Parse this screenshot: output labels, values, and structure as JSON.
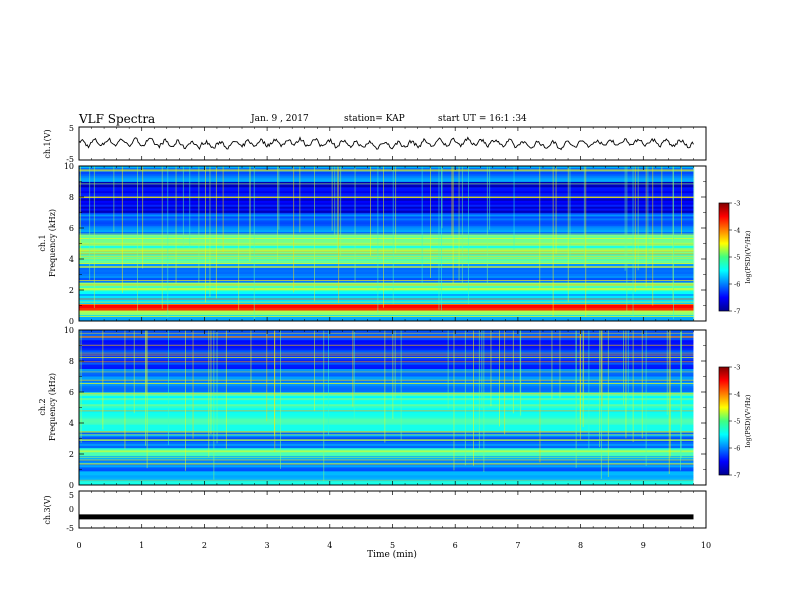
{
  "header": {
    "title": "VLF Spectra",
    "date": "Jan. 9 , 2017",
    "station": "station= KAP",
    "start_ut": "start UT = 16:1 :34"
  },
  "chart_data": [
    {
      "type": "line",
      "panel": "ch1-waveform",
      "ylabel": "ch.1(V)",
      "ylim": [
        -5,
        5
      ],
      "yticks": [
        "5",
        "-5"
      ],
      "xlim": [
        0,
        10
      ],
      "series": [
        {
          "values_note": "noisy waveform oscillating roughly between -1.5 and 1.5 V over 0–9.8 min"
        }
      ]
    },
    {
      "type": "heatmap",
      "panel": "ch1-spectrogram",
      "ylabel": "ch.1\nFrequency (kHz)",
      "ylabel_lines": [
        "ch.1",
        "Frequency (kHz)"
      ],
      "ylim": [
        0,
        10
      ],
      "yticks": [
        "0",
        "2",
        "4",
        "6",
        "8",
        "10"
      ],
      "xlim": [
        0,
        9.8
      ],
      "colorbar": {
        "label": "log(PSD)(V²/Hz)",
        "min": -7,
        "max": -3,
        "ticks": [
          "-3",
          "-4",
          "-5",
          "-6",
          "-7"
        ]
      },
      "bands_khz": [
        {
          "f0": 0.0,
          "f1": 0.4,
          "level": -5.8
        },
        {
          "f0": 0.4,
          "f1": 0.7,
          "level": -5.0
        },
        {
          "f0": 0.7,
          "f1": 1.1,
          "level": -3.6
        },
        {
          "f0": 1.1,
          "f1": 2.0,
          "level": -5.6
        },
        {
          "f0": 2.0,
          "f1": 2.5,
          "level": -5.0
        },
        {
          "f0": 2.5,
          "f1": 3.7,
          "level": -6.1
        },
        {
          "f0": 3.7,
          "f1": 5.6,
          "level": -5.2
        },
        {
          "f0": 5.6,
          "f1": 7.0,
          "level": -6.0
        },
        {
          "f0": 7.0,
          "f1": 9.0,
          "level": -6.6
        },
        {
          "f0": 9.0,
          "f1": 10.0,
          "level": -6.0
        }
      ]
    },
    {
      "type": "heatmap",
      "panel": "ch2-spectrogram",
      "ylabel": "ch.2\nFrequency (kHz)",
      "ylabel_lines": [
        "ch.2",
        "Frequency (kHz)"
      ],
      "ylim": [
        0,
        10
      ],
      "yticks": [
        "0",
        "2",
        "4",
        "6",
        "8",
        "10"
      ],
      "xlim": [
        0,
        9.8
      ],
      "colorbar": {
        "label": "log(PSD)(V²/Hz)",
        "min": -7,
        "max": -3,
        "ticks": [
          "-3",
          "-4",
          "-5",
          "-6",
          "-7"
        ]
      },
      "bands_khz": [
        {
          "f0": 0.0,
          "f1": 0.5,
          "level": -5.6
        },
        {
          "f0": 0.5,
          "f1": 1.9,
          "level": -6.0
        },
        {
          "f0": 1.9,
          "f1": 2.4,
          "level": -5.2
        },
        {
          "f0": 2.4,
          "f1": 3.5,
          "level": -6.0
        },
        {
          "f0": 3.5,
          "f1": 6.0,
          "level": -5.3
        },
        {
          "f0": 6.0,
          "f1": 7.5,
          "level": -5.9
        },
        {
          "f0": 7.5,
          "f1": 10.0,
          "level": -6.3
        }
      ]
    },
    {
      "type": "line",
      "panel": "ch3-waveform",
      "ylabel": "ch.3(V)",
      "ylim": [
        -5,
        5
      ],
      "yticks": [
        "5",
        "0",
        "-5"
      ],
      "xlim": [
        0,
        10
      ],
      "xlabel": "Time (min)",
      "xticks": [
        "0",
        "1",
        "2",
        "3",
        "4",
        "5",
        "6",
        "7",
        "8",
        "9",
        "10"
      ],
      "series": [
        {
          "values_note": "flat line at about -2 V"
        }
      ]
    }
  ],
  "colors": {
    "axis": "#000000",
    "background": "#ffffff",
    "trace": "#000000"
  }
}
